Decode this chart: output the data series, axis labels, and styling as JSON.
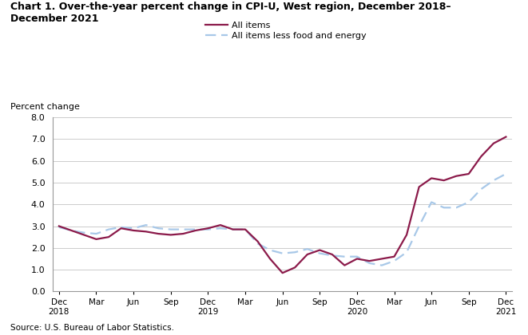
{
  "title_line1": "Chart 1. Over-the-year percent change in CPI-U, West region, December 2018–",
  "title_line2": "December 2021",
  "ylabel": "Percent change",
  "source": "Source: U.S. Bureau of Labor Statistics.",
  "ylim": [
    0.0,
    8.0
  ],
  "yticks": [
    0.0,
    1.0,
    2.0,
    3.0,
    4.0,
    5.0,
    6.0,
    7.0,
    8.0
  ],
  "all_items_color": "#8B1A4A",
  "core_color": "#A8C8E8",
  "all_items_label": "All items",
  "core_label": "All items less food and energy",
  "x_labels": [
    "Dec\n2018",
    "Mar",
    "Jun",
    "Sep",
    "Dec\n2019",
    "Mar",
    "Jun",
    "Sep",
    "Dec\n2020",
    "Mar",
    "Jun",
    "Sep",
    "Dec\n2021"
  ],
  "x_positions": [
    0,
    3,
    6,
    9,
    12,
    15,
    18,
    21,
    24,
    27,
    30,
    33,
    36
  ],
  "all_items_x": [
    0,
    1,
    2,
    3,
    4,
    5,
    6,
    7,
    8,
    9,
    10,
    11,
    12,
    13,
    14,
    15,
    16,
    17,
    18,
    19,
    20,
    21,
    22,
    23,
    24,
    25,
    26,
    27,
    28,
    29,
    30,
    31,
    32,
    33,
    34,
    35,
    36
  ],
  "all_items_y": [
    3.0,
    2.8,
    2.6,
    2.4,
    2.5,
    2.9,
    2.8,
    2.75,
    2.65,
    2.6,
    2.65,
    2.8,
    2.9,
    3.05,
    2.85,
    2.85,
    2.3,
    1.5,
    0.85,
    1.1,
    1.7,
    1.9,
    1.7,
    1.2,
    1.5,
    1.4,
    1.5,
    1.6,
    2.6,
    4.8,
    5.2,
    5.1,
    5.3,
    5.4,
    6.2,
    6.8,
    7.1
  ],
  "core_x": [
    0,
    1,
    2,
    3,
    4,
    5,
    6,
    7,
    8,
    9,
    10,
    11,
    12,
    13,
    14,
    15,
    16,
    17,
    18,
    19,
    20,
    21,
    22,
    23,
    24,
    25,
    26,
    27,
    28,
    29,
    30,
    31,
    32,
    33,
    34,
    35,
    36
  ],
  "core_y": [
    2.95,
    2.8,
    2.7,
    2.65,
    2.85,
    2.95,
    2.9,
    3.05,
    2.9,
    2.85,
    2.85,
    2.85,
    2.85,
    2.9,
    2.85,
    2.85,
    2.2,
    1.9,
    1.75,
    1.8,
    1.95,
    1.75,
    1.65,
    1.6,
    1.6,
    1.3,
    1.2,
    1.4,
    1.8,
    3.0,
    4.1,
    3.85,
    3.85,
    4.1,
    4.7,
    5.1,
    5.4
  ],
  "grid_color": "#cccccc",
  "spine_color": "#999999"
}
